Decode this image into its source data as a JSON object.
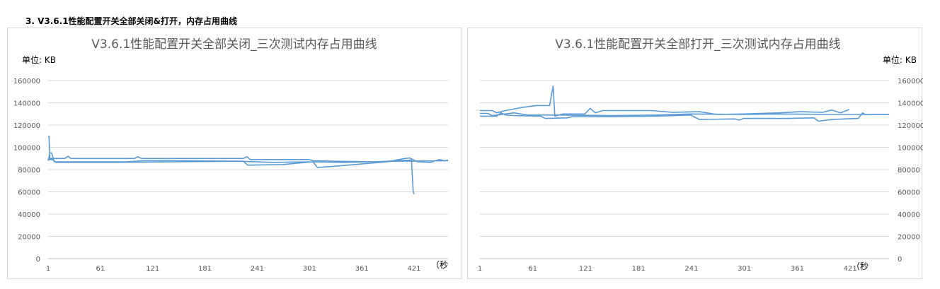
{
  "heading": "3.  V3.6.1性能配置开关全部关闭&打开，内存占用曲线",
  "chart_data": [
    {
      "type": "line",
      "title": "V3.6.1性能配置开关全部关闭_三次测试内存占用曲线",
      "unit_label": "单位: KB",
      "x_unit_label": "（秒",
      "y_axis_side": "left",
      "ylim": [
        0,
        160000
      ],
      "yticks": [
        0,
        20000,
        40000,
        60000,
        80000,
        100000,
        120000,
        140000,
        160000
      ],
      "xlim": [
        1,
        460
      ],
      "xticks": [
        1,
        61,
        121,
        181,
        241,
        301,
        361,
        421
      ],
      "grid": true,
      "series": [
        {
          "points": [
            [
              1,
              110000
            ],
            [
              2,
              110000
            ],
            [
              3,
              90000
            ],
            [
              20,
              90000
            ],
            [
              24,
              92000
            ],
            [
              27,
              90000
            ],
            [
              100,
              90000
            ],
            [
              104,
              91500
            ],
            [
              108,
              90000
            ],
            [
              185,
              90000
            ],
            [
              225,
              90000
            ],
            [
              229,
              91500
            ],
            [
              233,
              89000
            ],
            [
              300,
              89000
            ],
            [
              305,
              88000
            ],
            [
              330,
              87500
            ],
            [
              380,
              87000
            ],
            [
              400,
              88000
            ],
            [
              418,
              88500
            ],
            [
              420,
              60000
            ],
            [
              421,
              58000
            ]
          ]
        },
        {
          "points": [
            [
              1,
              88000
            ],
            [
              3,
              95000
            ],
            [
              5,
              95000
            ],
            [
              8,
              87000
            ],
            [
              90,
              87000
            ],
            [
              110,
              88000
            ],
            [
              150,
              88000
            ],
            [
              225,
              87500
            ],
            [
              230,
              84000
            ],
            [
              270,
              84500
            ],
            [
              290,
              86000
            ],
            [
              305,
              87000
            ],
            [
              310,
              82000
            ],
            [
              330,
              83000
            ],
            [
              360,
              85000
            ],
            [
              390,
              87000
            ],
            [
              410,
              90000
            ],
            [
              416,
              90500
            ],
            [
              425,
              87000
            ],
            [
              440,
              86500
            ],
            [
              450,
              89000
            ],
            [
              456,
              88000
            ],
            [
              460,
              88500
            ]
          ]
        },
        {
          "points": [
            [
              1,
              89000
            ],
            [
              6,
              89000
            ],
            [
              10,
              86500
            ],
            [
              80,
              86500
            ],
            [
              150,
              87000
            ],
            [
              220,
              87500
            ],
            [
              260,
              86500
            ],
            [
              300,
              87000
            ],
            [
              340,
              86500
            ],
            [
              400,
              87500
            ],
            [
              460,
              88000
            ]
          ]
        }
      ]
    },
    {
      "type": "line",
      "title": "V3.6.1性能配置开关全部打开_三次测试内存占用曲线",
      "unit_label": "单位: KB",
      "x_unit_label": "（秒",
      "y_axis_side": "right",
      "ylim": [
        0,
        160000
      ],
      "yticks": [
        0,
        20000,
        40000,
        60000,
        80000,
        100000,
        120000,
        140000,
        160000
      ],
      "xlim": [
        1,
        465
      ],
      "xticks": [
        1,
        61,
        121,
        181,
        241,
        301,
        361,
        421
      ],
      "grid": true,
      "series": [
        {
          "points": [
            [
              1,
              133000
            ],
            [
              15,
              133000
            ],
            [
              20,
              131000
            ],
            [
              30,
              133000
            ],
            [
              50,
              136000
            ],
            [
              65,
              137500
            ],
            [
              80,
              137500
            ],
            [
              84,
              155000
            ],
            [
              86,
              128000
            ],
            [
              95,
              130000
            ],
            [
              120,
              130000
            ],
            [
              126,
              135000
            ],
            [
              132,
              131000
            ],
            [
              140,
              133000
            ],
            [
              195,
              133000
            ],
            [
              220,
              131500
            ],
            [
              250,
              132000
            ],
            [
              270,
              129500
            ],
            [
              300,
              130000
            ],
            [
              340,
              131000
            ],
            [
              365,
              132000
            ],
            [
              390,
              131500
            ],
            [
              400,
              133500
            ],
            [
              410,
              131000
            ],
            [
              420,
              134000
            ]
          ]
        },
        {
          "points": [
            [
              1,
              128000
            ],
            [
              20,
              128000
            ],
            [
              25,
              131000
            ],
            [
              30,
              129000
            ],
            [
              40,
              128500
            ],
            [
              70,
              128000
            ],
            [
              75,
              126000
            ],
            [
              100,
              126500
            ],
            [
              105,
              127500
            ],
            [
              150,
              127500
            ],
            [
              200,
              128000
            ],
            [
              240,
              129000
            ],
            [
              250,
              125000
            ],
            [
              290,
              125500
            ],
            [
              295,
              124500
            ],
            [
              300,
              126000
            ],
            [
              350,
              126000
            ],
            [
              380,
              126500
            ],
            [
              385,
              123500
            ],
            [
              400,
              125000
            ],
            [
              430,
              126000
            ],
            [
              435,
              131000
            ],
            [
              438,
              129500
            ],
            [
              465,
              129500
            ]
          ]
        },
        {
          "points": [
            [
              1,
              130500
            ],
            [
              10,
              130500
            ],
            [
              15,
              128500
            ],
            [
              40,
              131000
            ],
            [
              55,
              129000
            ],
            [
              90,
              129000
            ],
            [
              150,
              128500
            ],
            [
              200,
              129000
            ],
            [
              240,
              130000
            ],
            [
              300,
              129500
            ],
            [
              340,
              130000
            ],
            [
              400,
              129500
            ],
            [
              465,
              129500
            ]
          ]
        }
      ]
    }
  ]
}
